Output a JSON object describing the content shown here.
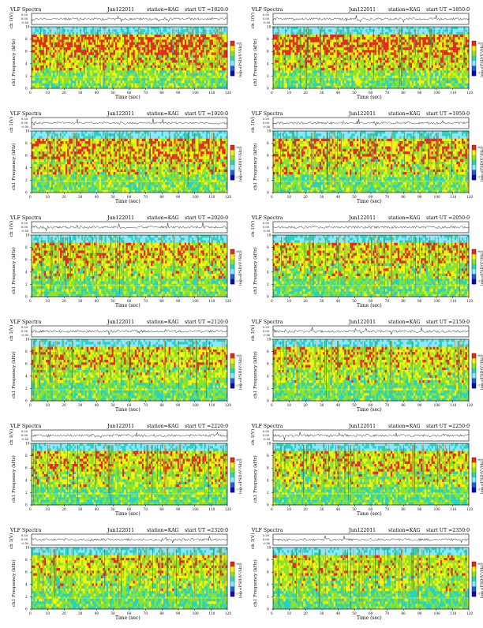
{
  "chart_data": [
    {
      "type": "heatmap",
      "header": {
        "left": "VLF Spectra",
        "date": "Jun122011",
        "station": "station=KAG",
        "start": "start  UT =1820:0"
      },
      "ylabel_top": "ch 1(V)",
      "ylabel_main": "ch1 Frequency (kHz)",
      "xlabel": "Time  (sec)",
      "colorbar_label": "log₁₀(PSD(V²/Hz))",
      "xlim": [
        0,
        120
      ],
      "ylim": [
        0,
        10
      ],
      "top_ylim": [
        -0.5,
        0.5
      ],
      "x_ticks": [
        0,
        10,
        20,
        30,
        40,
        50,
        60,
        70,
        80,
        90,
        100,
        110,
        120
      ],
      "y_ticks": [
        0,
        2,
        4,
        6,
        8,
        10
      ],
      "top_y_ticks": [
        "0.50",
        "0.00",
        "-0.50"
      ],
      "colorbar_ticks": [
        "-6",
        "-7"
      ],
      "activity": 0.95,
      "colors": [
        "#e52a1f",
        "#f4f40c",
        "#8de22c",
        "#2bd3bf",
        "#8fe6ff",
        "#1f5fd8",
        "#0b0bb0"
      ]
    },
    {
      "type": "heatmap",
      "header": {
        "left": "VLF Spectra",
        "date": "Jun122011",
        "station": "station=KAG",
        "start": "start  UT =1850:0"
      },
      "ylabel_top": "ch 1(V)",
      "ylabel_main": "ch1 Frequency (kHz)",
      "xlabel": "Time  (sec)",
      "colorbar_label": "log₁₀(PSD(V²/Hz))",
      "xlim": [
        0,
        120
      ],
      "ylim": [
        0,
        10
      ],
      "top_ylim": [
        -0.5,
        0.5
      ],
      "x_ticks": [
        0,
        10,
        20,
        30,
        40,
        50,
        60,
        70,
        80,
        90,
        100,
        110,
        120
      ],
      "y_ticks": [
        0,
        2,
        4,
        6,
        8,
        10
      ],
      "top_y_ticks": [
        "0.50",
        "0.00",
        "-0.50"
      ],
      "colorbar_ticks": [
        "-6",
        "-7"
      ],
      "activity": 0.92,
      "colors": [
        "#e52a1f",
        "#f4f40c",
        "#8de22c",
        "#2bd3bf",
        "#8fe6ff",
        "#1f5fd8",
        "#0b0bb0"
      ]
    },
    {
      "type": "heatmap",
      "header": {
        "left": "VLF Spectra",
        "date": "Jun122011",
        "station": "station=KAG",
        "start": "start  UT =1920:0"
      },
      "ylabel_top": "ch 1(V)",
      "ylabel_main": "ch1 Frequency (kHz)",
      "xlabel": "Time  (sec)",
      "colorbar_label": "log₁₀(PSD(V²/Hz))",
      "xlim": [
        0,
        120
      ],
      "ylim": [
        0,
        10
      ],
      "top_ylim": [
        -0.5,
        0.5
      ],
      "x_ticks": [
        0,
        10,
        20,
        30,
        40,
        50,
        60,
        70,
        80,
        90,
        100,
        110,
        120
      ],
      "y_ticks": [
        0,
        2,
        4,
        6,
        8,
        10
      ],
      "top_y_ticks": [
        "0.50",
        "0.00",
        "-0.50"
      ],
      "colorbar_ticks": [
        "-6",
        "-7"
      ],
      "activity": 0.8,
      "colors": [
        "#e52a1f",
        "#f4f40c",
        "#8de22c",
        "#2bd3bf",
        "#8fe6ff",
        "#1f5fd8",
        "#0b0bb0"
      ]
    },
    {
      "type": "heatmap",
      "header": {
        "left": "VLF Spectra",
        "date": "Jun122011",
        "station": "station=KAG",
        "start": "start  UT =1950:0"
      },
      "ylabel_top": "ch 1(V)",
      "ylabel_main": "ch1 Frequency (kHz)",
      "xlabel": "Time  (sec)",
      "colorbar_label": "log₁₀(PSD(V²/Hz))",
      "xlim": [
        0,
        120
      ],
      "ylim": [
        0,
        10
      ],
      "top_ylim": [
        -0.5,
        0.5
      ],
      "x_ticks": [
        0,
        10,
        20,
        30,
        40,
        50,
        60,
        70,
        80,
        90,
        100,
        110,
        120
      ],
      "y_ticks": [
        0,
        2,
        4,
        6,
        8,
        10
      ],
      "top_y_ticks": [
        "0.50",
        "0.00",
        "-0.50"
      ],
      "colorbar_ticks": [
        "-6",
        "-7"
      ],
      "activity": 0.72,
      "colors": [
        "#e52a1f",
        "#f4f40c",
        "#8de22c",
        "#2bd3bf",
        "#8fe6ff",
        "#1f5fd8",
        "#0b0bb0"
      ]
    },
    {
      "type": "heatmap",
      "header": {
        "left": "VLF Spectra",
        "date": "Jun122011",
        "station": "station=KAG",
        "start": "start  UT =2020:0"
      },
      "ylabel_top": "ch 1(V)",
      "ylabel_main": "ch1 Frequency (kHz)",
      "xlabel": "Time  (sec)",
      "colorbar_label": "log₁₀(PSD(V²/Hz))",
      "xlim": [
        0,
        120
      ],
      "ylim": [
        0,
        10
      ],
      "top_ylim": [
        -0.5,
        0.5
      ],
      "x_ticks": [
        0,
        10,
        20,
        30,
        40,
        50,
        60,
        70,
        80,
        90,
        100,
        110,
        120
      ],
      "y_ticks": [
        0,
        2,
        4,
        6,
        8,
        10
      ],
      "top_y_ticks": [
        "0.50",
        "0.00",
        "-0.50"
      ],
      "colorbar_ticks": [
        "-6",
        "-7"
      ],
      "activity": 0.62,
      "colors": [
        "#e52a1f",
        "#f4f40c",
        "#8de22c",
        "#2bd3bf",
        "#8fe6ff",
        "#1f5fd8",
        "#0b0bb0"
      ]
    },
    {
      "type": "heatmap",
      "header": {
        "left": "VLF Spectra",
        "date": "Jun122011",
        "station": "station=KAG",
        "start": "start  UT =2050:0"
      },
      "ylabel_top": "ch 1(V)",
      "ylabel_main": "ch1 Frequency (kHz)",
      "xlabel": "Time  (sec)",
      "colorbar_label": "log₁₀(PSD(V²/Hz))",
      "xlim": [
        0,
        120
      ],
      "ylim": [
        0,
        10
      ],
      "top_ylim": [
        -0.5,
        0.5
      ],
      "x_ticks": [
        0,
        10,
        20,
        30,
        40,
        50,
        60,
        70,
        80,
        90,
        100,
        110,
        120
      ],
      "y_ticks": [
        0,
        2,
        4,
        6,
        8,
        10
      ],
      "top_y_ticks": [
        "0.50",
        "0.00",
        "-0.50"
      ],
      "colorbar_ticks": [
        "-6",
        "-7"
      ],
      "activity": 0.58,
      "colors": [
        "#e52a1f",
        "#f4f40c",
        "#8de22c",
        "#2bd3bf",
        "#8fe6ff",
        "#1f5fd8",
        "#0b0bb0"
      ]
    },
    {
      "type": "heatmap",
      "header": {
        "left": "VLF Spectra",
        "date": "Jun122011",
        "station": "station=KAG",
        "start": "start  UT =2120:0"
      },
      "ylabel_top": "ch 1(V)",
      "ylabel_main": "ch1 Frequency (kHz)",
      "xlabel": "Time  (sec)",
      "colorbar_label": "log₁₀(PSD(V²/Hz))",
      "xlim": [
        0,
        120
      ],
      "ylim": [
        0,
        10
      ],
      "top_ylim": [
        -0.5,
        0.5
      ],
      "x_ticks": [
        0,
        10,
        20,
        30,
        40,
        50,
        60,
        70,
        80,
        90,
        100,
        110,
        120
      ],
      "y_ticks": [
        0,
        2,
        4,
        6,
        8,
        10
      ],
      "top_y_ticks": [
        "0.50",
        "0.00",
        "-0.50"
      ],
      "colorbar_ticks": [
        "-6",
        "-7"
      ],
      "activity": 0.5,
      "colors": [
        "#e52a1f",
        "#f4f40c",
        "#8de22c",
        "#2bd3bf",
        "#8fe6ff",
        "#1f5fd8",
        "#0b0bb0"
      ]
    },
    {
      "type": "heatmap",
      "header": {
        "left": "VLF Spectra",
        "date": "Jun122011",
        "station": "station=KAG",
        "start": "start  UT =2150:0"
      },
      "ylabel_top": "ch 1(V)",
      "ylabel_main": "ch1 Frequency (kHz)",
      "xlabel": "Time  (sec)",
      "colorbar_label": "log₁₀(PSD(V²/Hz))",
      "xlim": [
        0,
        120
      ],
      "ylim": [
        0,
        10
      ],
      "top_ylim": [
        -0.5,
        0.5
      ],
      "x_ticks": [
        0,
        10,
        20,
        30,
        40,
        50,
        60,
        70,
        80,
        90,
        100,
        110,
        120
      ],
      "y_ticks": [
        0,
        2,
        4,
        6,
        8,
        10
      ],
      "top_y_ticks": [
        "0.50",
        "0.00",
        "-0.50"
      ],
      "colorbar_ticks": [
        "-6",
        "-7"
      ],
      "activity": 0.5,
      "colors": [
        "#e52a1f",
        "#f4f40c",
        "#8de22c",
        "#2bd3bf",
        "#8fe6ff",
        "#1f5fd8",
        "#0b0bb0"
      ]
    },
    {
      "type": "heatmap",
      "header": {
        "left": "VLF Spectra",
        "date": "Jun122011",
        "station": "station=KAG",
        "start": "start  UT =2220:0"
      },
      "ylabel_top": "ch 1(V)",
      "ylabel_main": "ch1 Frequency (kHz)",
      "xlabel": "Time  (sec)",
      "colorbar_label": "log₁₀(PSD(V²/Hz))",
      "xlim": [
        0,
        120
      ],
      "ylim": [
        0,
        10
      ],
      "top_ylim": [
        -0.5,
        0.5
      ],
      "x_ticks": [
        0,
        10,
        20,
        30,
        40,
        50,
        60,
        70,
        80,
        90,
        100,
        110,
        120
      ],
      "y_ticks": [
        0,
        2,
        4,
        6,
        8,
        10
      ],
      "top_y_ticks": [
        "0.50",
        "0.00",
        "-0.50"
      ],
      "colorbar_ticks": [
        "-6",
        "-7"
      ],
      "activity": 0.55,
      "colors": [
        "#e52a1f",
        "#f4f40c",
        "#8de22c",
        "#2bd3bf",
        "#8fe6ff",
        "#1f5fd8",
        "#0b0bb0"
      ]
    },
    {
      "type": "heatmap",
      "header": {
        "left": "VLF Spectra",
        "date": "Jun122011",
        "station": "station=KAG",
        "start": "start  UT =2250:0"
      },
      "ylabel_top": "ch 1(V)",
      "ylabel_main": "ch1 Frequency (kHz)",
      "xlabel": "Time  (sec)",
      "colorbar_label": "log₁₀(PSD(V²/Hz))",
      "xlim": [
        0,
        120
      ],
      "ylim": [
        0,
        10
      ],
      "top_ylim": [
        -0.5,
        0.5
      ],
      "x_ticks": [
        0,
        10,
        20,
        30,
        40,
        50,
        60,
        70,
        80,
        90,
        100,
        110,
        120
      ],
      "y_ticks": [
        0,
        2,
        4,
        6,
        8,
        10
      ],
      "top_y_ticks": [
        "0.50",
        "0.00",
        "-0.50"
      ],
      "colorbar_ticks": [
        "-6",
        "-7"
      ],
      "activity": 0.5,
      "colors": [
        "#e52a1f",
        "#f4f40c",
        "#8de22c",
        "#2bd3bf",
        "#8fe6ff",
        "#1f5fd8",
        "#0b0bb0"
      ]
    },
    {
      "type": "heatmap",
      "header": {
        "left": "VLF Spectra",
        "date": "Jun122011",
        "station": "station=KAG",
        "start": "start  UT =2320:0"
      },
      "ylabel_top": "ch 1(V)",
      "ylabel_main": "ch1 Frequency (kHz)",
      "xlabel": "Time  (sec)",
      "colorbar_label": "log₁₀(PSD(V²/Hz))",
      "xlim": [
        0,
        120
      ],
      "ylim": [
        0,
        10
      ],
      "top_ylim": [
        -0.5,
        0.5
      ],
      "x_ticks": [
        0,
        10,
        20,
        30,
        40,
        50,
        60,
        70,
        80,
        90,
        100,
        110,
        120
      ],
      "y_ticks": [
        0,
        2,
        4,
        6,
        8,
        10
      ],
      "top_y_ticks": [
        "0.50",
        "0.00",
        "-0.50"
      ],
      "colorbar_ticks": [
        "-6",
        "-7"
      ],
      "activity": 0.4,
      "colors": [
        "#e52a1f",
        "#f4f40c",
        "#8de22c",
        "#2bd3bf",
        "#8fe6ff",
        "#1f5fd8",
        "#0b0bb0"
      ]
    },
    {
      "type": "heatmap",
      "header": {
        "left": "VLF Spectra",
        "date": "Jun122011",
        "station": "station=KAG",
        "start": "start  UT =2350:0"
      },
      "ylabel_top": "ch 1(V)",
      "ylabel_main": "ch1 Frequency (kHz)",
      "xlabel": "Time  (sec)",
      "colorbar_label": "log₁₀(PSD(V²/Hz))",
      "xlim": [
        0,
        120
      ],
      "ylim": [
        0,
        10
      ],
      "top_ylim": [
        -0.5,
        0.5
      ],
      "x_ticks": [
        0,
        10,
        20,
        30,
        40,
        50,
        60,
        70,
        80,
        90,
        100,
        110,
        120
      ],
      "y_ticks": [
        0,
        2,
        4,
        6,
        8,
        10
      ],
      "top_y_ticks": [
        "0.50",
        "0.00",
        "-0.50"
      ],
      "colorbar_ticks": [
        "-6",
        "-7"
      ],
      "activity": 0.4,
      "colors": [
        "#e52a1f",
        "#f4f40c",
        "#8de22c",
        "#2bd3bf",
        "#8fe6ff",
        "#1f5fd8",
        "#0b0bb0"
      ]
    }
  ]
}
